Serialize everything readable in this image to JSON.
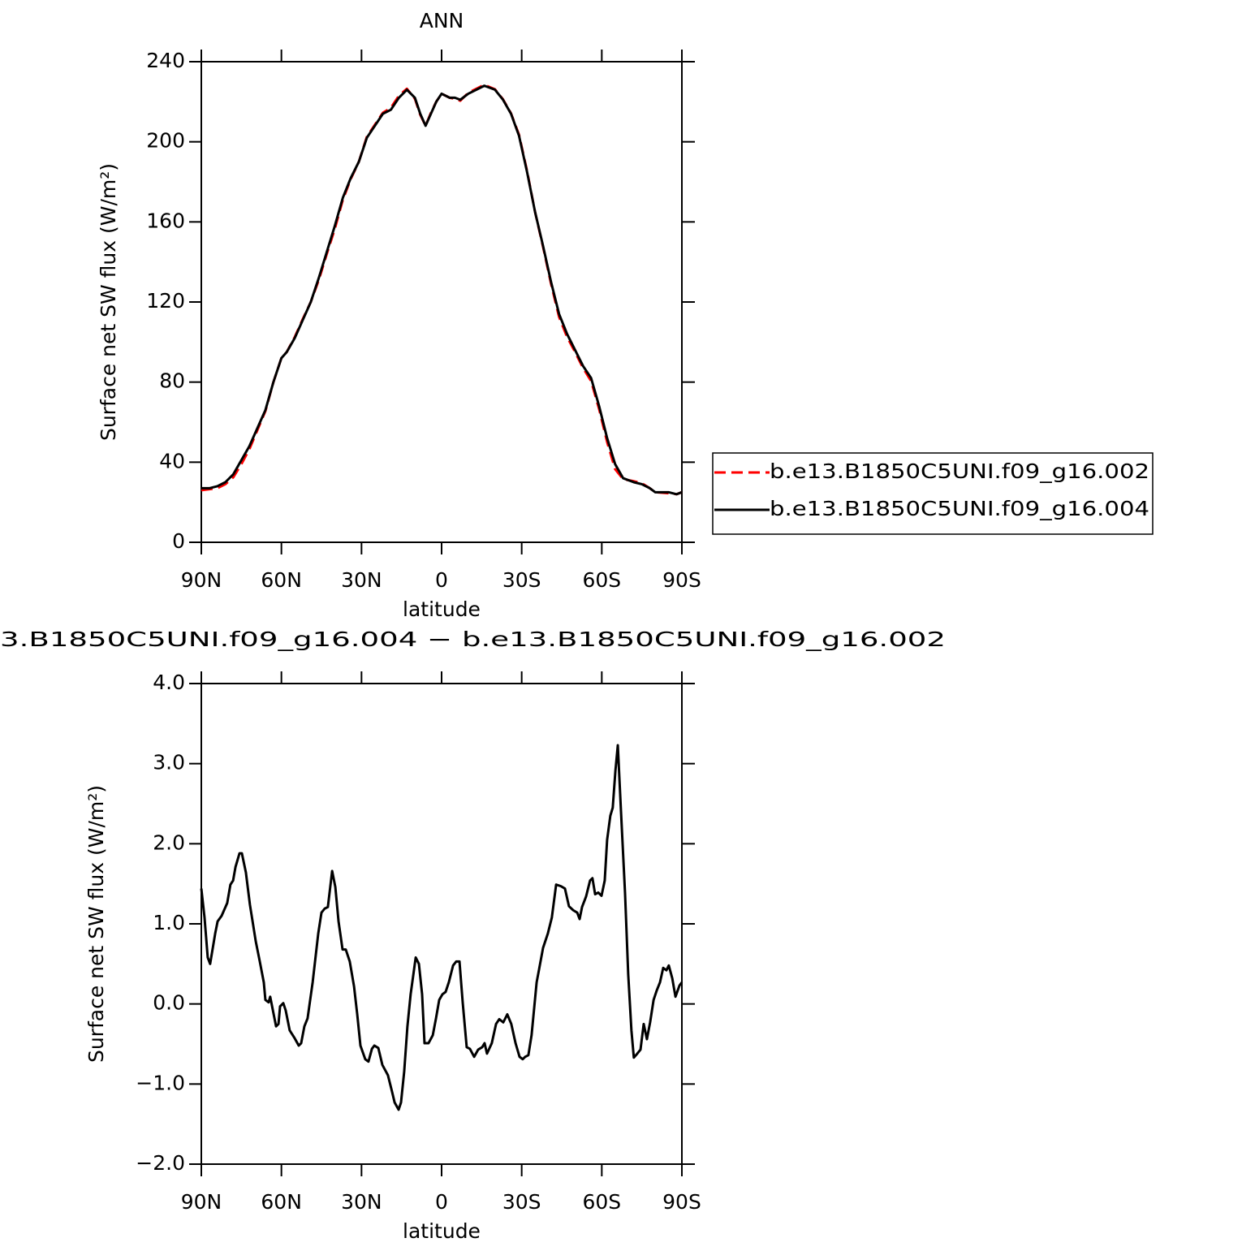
{
  "chart_data": [
    {
      "type": "line",
      "title": "ANN",
      "xlabel": "latitude",
      "ylabel": "Surface net SW flux (W/m²)",
      "xlim": [
        90,
        -90
      ],
      "xticks": [
        {
          "value": 90,
          "label": "90N"
        },
        {
          "value": 60,
          "label": "60N"
        },
        {
          "value": 30,
          "label": "30N"
        },
        0,
        {
          "value": -30,
          "label": "30S"
        },
        {
          "value": -60,
          "label": "60S"
        },
        {
          "value": -90,
          "label": "90S"
        }
      ],
      "ylim": [
        0,
        240
      ],
      "yticks": [
        0,
        40,
        80,
        120,
        160,
        200,
        240
      ],
      "legend": "right",
      "x": [
        90,
        87,
        84,
        81,
        78,
        75,
        72,
        69,
        66,
        63,
        60,
        58,
        55,
        52,
        49,
        46,
        43,
        40,
        37,
        34,
        31,
        28,
        25,
        22,
        19,
        16,
        13,
        10,
        8,
        6,
        4,
        2,
        0,
        -3,
        -5,
        -7,
        -10,
        -13,
        -16,
        -20,
        -23,
        -26,
        -29,
        -32,
        -35,
        -38,
        -41,
        -44,
        -47,
        -50,
        -53,
        -56,
        -59,
        -62,
        -65,
        -68,
        -72,
        -75,
        -78,
        -80,
        -85,
        -88,
        -90
      ],
      "series": [
        {
          "name": "b.e13.B1850C5UNI.f09_g16.002",
          "color": "#ff0000",
          "line_style": "dashed",
          "values": [
            26,
            26.5,
            27,
            29,
            32.5,
            39,
            46.5,
            56,
            65.5,
            80,
            92,
            95,
            102.5,
            111.5,
            120,
            131,
            144,
            156.5,
            171,
            181.5,
            190,
            202.5,
            208.5,
            214.5,
            217,
            223,
            226.5,
            221.5,
            213.5,
            208,
            214.5,
            220,
            224,
            222,
            221.5,
            220.5,
            224.5,
            226.5,
            228.5,
            226.2,
            221.2,
            214.2,
            203.5,
            185.5,
            165,
            147.5,
            129,
            112.5,
            102.5,
            95,
            87,
            80.5,
            66.5,
            50,
            36.5,
            31.5,
            30.5,
            29.5,
            27,
            25,
            24.5,
            24,
            25
          ]
        },
        {
          "name": "b.e13.B1850C5UNI.f09_g16.004",
          "color": "#000000",
          "line_style": "solid",
          "values": [
            27,
            27,
            28,
            30,
            34,
            41,
            48,
            57,
            66,
            80,
            92,
            95,
            102,
            111,
            120,
            132,
            145,
            158,
            172,
            182,
            190,
            202,
            208,
            214,
            216,
            222,
            226,
            222,
            214,
            208,
            214,
            220,
            224,
            222,
            222,
            221,
            224,
            226,
            228,
            226,
            221,
            214,
            203,
            185,
            165,
            148,
            130,
            114,
            104,
            96,
            88,
            82,
            68,
            52,
            39,
            32,
            30,
            29,
            27,
            25,
            25,
            24,
            25
          ]
        }
      ]
    },
    {
      "type": "line",
      "title": "3.B1850C5UNI.f09_g16.004 − b.e13.B1850C5UNI.f09_g16.002",
      "xlabel": "latitude",
      "ylabel": "Surface net SW flux (W/m²)",
      "xlim": [
        90,
        -90
      ],
      "xticks": [
        {
          "value": 90,
          "label": "90N"
        },
        {
          "value": 60,
          "label": "60N"
        },
        {
          "value": 30,
          "label": "30N"
        },
        0,
        {
          "value": -30,
          "label": "30S"
        },
        {
          "value": -60,
          "label": "60S"
        },
        {
          "value": -90,
          "label": "90S"
        }
      ],
      "ylim": [
        -2,
        4
      ],
      "yticks": [
        {
          "value": -2,
          "label": "−2.0"
        },
        {
          "value": -1,
          "label": "−1.0"
        },
        {
          "value": 0,
          "label": "0.0"
        },
        {
          "value": 1,
          "label": "1.0"
        },
        {
          "value": 2,
          "label": "2.0"
        },
        {
          "value": 3,
          "label": "3.0"
        },
        {
          "value": 4,
          "label": "4.0"
        }
      ],
      "color": "#000000",
      "x": [
        90,
        88.8,
        87.6,
        86.7,
        84.8,
        83.9,
        82.4,
        80.3,
        79.1,
        78.1,
        77.2,
        75.7,
        74.8,
        73.3,
        71.8,
        69.6,
        68.1,
        66.6,
        66,
        64.8,
        64.2,
        62,
        61.1,
        60.5,
        59.3,
        58.4,
        56.9,
        55,
        53.5,
        52.6,
        51.4,
        50.2,
        48.3,
        46.2,
        45,
        43.8,
        42.6,
        41,
        39.8,
        38.6,
        37.1,
        35.9,
        34.4,
        32.8,
        31.6,
        30.4,
        28.6,
        27.4,
        26.1,
        25.2,
        23.7,
        22.2,
        20.1,
        18.6,
        17.6,
        16.1,
        15.2,
        14,
        12.8,
        11.6,
        9.7,
        8.5,
        7.3,
        6.4,
        4.9,
        3.3,
        2.1,
        0.9,
        -0.3,
        -1.5,
        -2.7,
        -4.3,
        -5.5,
        -6.7,
        -7.9,
        -9.4,
        -10.6,
        -12.2,
        -13.7,
        -15.2,
        -16.1,
        -17,
        -18.8,
        -20.4,
        -21.6,
        -23.1,
        -24.6,
        -26.1,
        -27.7,
        -29.2,
        -30.4,
        -31.3,
        -32.5,
        -33.7,
        -35.6,
        -36.5,
        -38,
        -39.8,
        -41.3,
        -42.9,
        -44.7,
        -46.2,
        -47.7,
        -49.3,
        -50.8,
        -51.7,
        -52.6,
        -54.1,
        -55.6,
        -56.5,
        -57.5,
        -58.7,
        -59.9,
        -61.1,
        -62,
        -63.2,
        -64.1,
        -65.1,
        -66,
        -67.2,
        -68.7,
        -69.9,
        -71.1,
        -72,
        -73.3,
        -74.5,
        -75.7,
        -76.9,
        -78.1,
        -79.4,
        -80.6,
        -81.8,
        -83,
        -84.2,
        -85.1,
        -86.4,
        -87.6,
        -89.1,
        -90
      ],
      "values": [
        1.44,
        1.08,
        0.58,
        0.5,
        0.88,
        1.03,
        1.1,
        1.26,
        1.49,
        1.54,
        1.71,
        1.88,
        1.88,
        1.64,
        1.24,
        0.78,
        0.53,
        0.27,
        0.05,
        0.02,
        0.09,
        -0.28,
        -0.25,
        -0.03,
        0.01,
        -0.08,
        -0.33,
        -0.43,
        -0.52,
        -0.49,
        -0.28,
        -0.18,
        0.27,
        0.88,
        1.14,
        1.19,
        1.21,
        1.66,
        1.46,
        1.03,
        0.68,
        0.68,
        0.53,
        0.22,
        -0.13,
        -0.52,
        -0.69,
        -0.72,
        -0.56,
        -0.52,
        -0.55,
        -0.76,
        -0.89,
        -1.09,
        -1.23,
        -1.32,
        -1.23,
        -0.84,
        -0.28,
        0.12,
        0.58,
        0.5,
        0.12,
        -0.49,
        -0.49,
        -0.39,
        -0.18,
        0.05,
        0.12,
        0.15,
        0.27,
        0.48,
        0.53,
        0.53,
        0.02,
        -0.54,
        -0.56,
        -0.66,
        -0.57,
        -0.54,
        -0.49,
        -0.62,
        -0.49,
        -0.25,
        -0.19,
        -0.23,
        -0.13,
        -0.25,
        -0.49,
        -0.66,
        -0.69,
        -0.66,
        -0.64,
        -0.39,
        0.27,
        0.43,
        0.7,
        0.88,
        1.08,
        1.49,
        1.47,
        1.44,
        1.22,
        1.17,
        1.14,
        1.06,
        1.21,
        1.34,
        1.54,
        1.57,
        1.37,
        1.39,
        1.35,
        1.54,
        2.05,
        2.35,
        2.45,
        2.91,
        3.23,
        2.4,
        1.39,
        0.37,
        -0.33,
        -0.67,
        -0.62,
        -0.57,
        -0.25,
        -0.44,
        -0.23,
        0.05,
        0.17,
        0.27,
        0.45,
        0.42,
        0.48,
        0.32,
        0.09,
        0.23,
        0.27
      ]
    }
  ]
}
